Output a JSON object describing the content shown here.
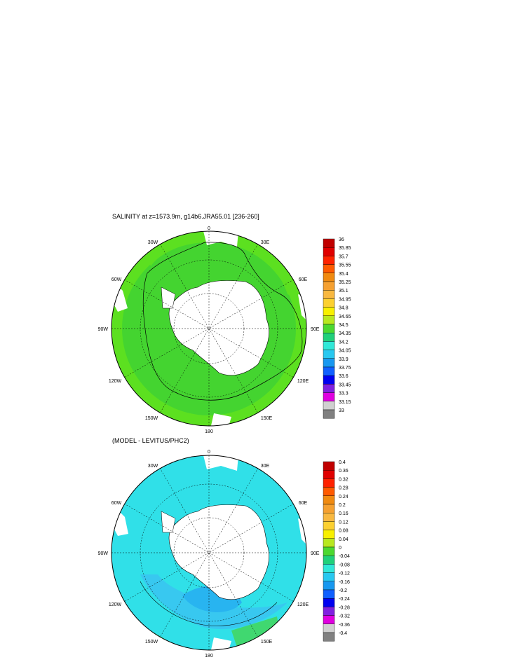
{
  "panels": [
    {
      "title": "SALINITY at z=1573.9m, g14b6.JRA55.01 [236-260]",
      "colorbar_labels": [
        "36",
        "35.85",
        "35.7",
        "35.55",
        "35.4",
        "35.25",
        "35.1",
        "34.95",
        "34.8",
        "34.65",
        "34.5",
        "34.35",
        "34.2",
        "34.05",
        "33.9",
        "33.75",
        "33.6",
        "33.45",
        "33.3",
        "33.15",
        "33"
      ]
    },
    {
      "title": "(MODEL - LEVITUS/PHC2)",
      "colorbar_labels": [
        "0.4",
        "0.36",
        "0.32",
        "0.28",
        "0.24",
        "0.2",
        "0.16",
        "0.12",
        "0.08",
        "0.04",
        "0",
        "-0.04",
        "-0.08",
        "-0.12",
        "-0.16",
        "-0.2",
        "-0.24",
        "-0.28",
        "-0.32",
        "-0.36",
        "-0.4"
      ]
    }
  ],
  "lon_labels": [
    "0",
    "30E",
    "60E",
    "90E",
    "120E",
    "150E",
    "180",
    "150W",
    "120W",
    "90W",
    "60W",
    "30W"
  ],
  "colorbar_colors": [
    "#c00000",
    "#e00000",
    "#ff2200",
    "#ff5a00",
    "#f08a10",
    "#f5a030",
    "#f8b840",
    "#fcd030",
    "#f8f000",
    "#b8e820",
    "#4cd830",
    "#20d07a",
    "#30e8d8",
    "#28c8f0",
    "#1898f0",
    "#1060ff",
    "#0000f0",
    "#8020e0",
    "#e000e0",
    "#d0d0d0",
    "#808080"
  ],
  "chart_data": [
    {
      "type": "heatmap",
      "title": "SALINITY at z=1573.9m, g14b6.JRA55.01 [236-260]",
      "projection": "south-polar-stereographic",
      "levels": [
        36,
        35.85,
        35.7,
        35.55,
        35.4,
        35.25,
        35.1,
        34.95,
        34.8,
        34.65,
        34.5,
        34.35,
        34.2,
        34.05,
        33.9,
        33.75,
        33.6,
        33.45,
        33.3,
        33.15,
        33
      ],
      "dominant_range": [
        34.5,
        34.8
      ]
    },
    {
      "type": "heatmap",
      "title": "(MODEL - LEVITUS/PHC2)",
      "projection": "south-polar-stereographic",
      "levels": [
        0.4,
        0.36,
        0.32,
        0.28,
        0.24,
        0.2,
        0.16,
        0.12,
        0.08,
        0.04,
        0,
        -0.04,
        -0.08,
        -0.12,
        -0.16,
        -0.2,
        -0.24,
        -0.28,
        -0.32,
        -0.36,
        -0.4
      ],
      "dominant_range": [
        -0.08,
        0.0
      ]
    }
  ]
}
